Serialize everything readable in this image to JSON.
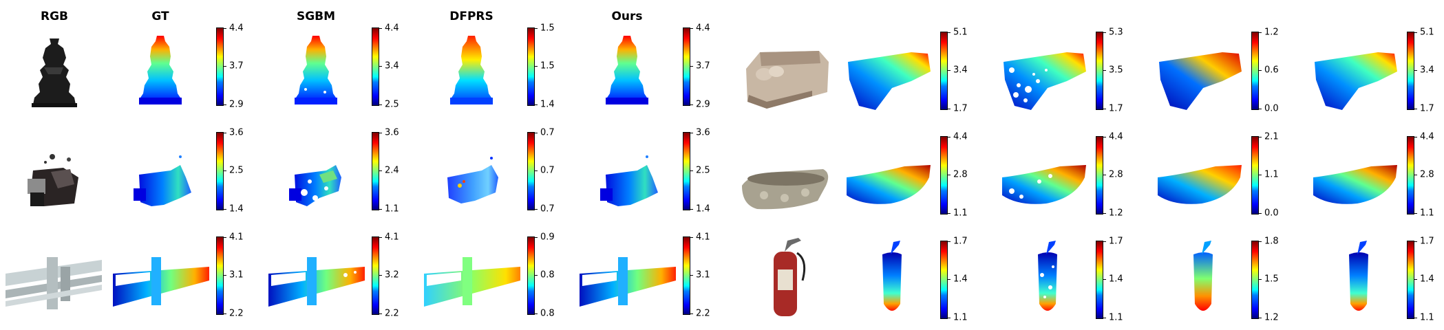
{
  "columns": [
    "RGB",
    "GT",
    "SGBM",
    "DFPRS",
    "Ours"
  ],
  "rows": [
    {
      "scene": "chess-piece",
      "colorbars": [
        [
          "4.4",
          "3.7",
          "2.9"
        ],
        [
          "4.4",
          "3.4",
          "2.5"
        ],
        [
          "1.5",
          "1.5",
          "1.4"
        ],
        [
          "4.4",
          "3.7",
          "2.9"
        ]
      ]
    },
    {
      "scene": "sofa",
      "colorbars": [
        [
          "5.1",
          "3.4",
          "1.7"
        ],
        [
          "5.3",
          "3.5",
          "1.7"
        ],
        [
          "1.2",
          "0.6",
          "0.0"
        ],
        [
          "5.1",
          "3.4",
          "1.7"
        ]
      ]
    },
    {
      "scene": "cluttered-objects",
      "colorbars": [
        [
          "3.6",
          "2.5",
          "1.4"
        ],
        [
          "3.6",
          "2.4",
          "1.1"
        ],
        [
          "0.7",
          "0.7",
          "0.7"
        ],
        [
          "3.6",
          "2.5",
          "1.4"
        ]
      ]
    },
    {
      "scene": "bathtub",
      "colorbars": [
        [
          "4.4",
          "2.8",
          "1.1"
        ],
        [
          "4.4",
          "2.8",
          "1.2"
        ],
        [
          "2.1",
          "1.1",
          "0.0"
        ],
        [
          "4.4",
          "2.8",
          "1.1"
        ]
      ]
    },
    {
      "scene": "railing",
      "colorbars": [
        [
          "4.1",
          "3.1",
          "2.2"
        ],
        [
          "4.1",
          "3.2",
          "2.2"
        ],
        [
          "0.9",
          "0.8",
          "0.8"
        ],
        [
          "4.1",
          "3.1",
          "2.2"
        ]
      ]
    },
    {
      "scene": "fire-extinguisher",
      "colorbars": [
        [
          "1.7",
          "1.4",
          "1.1"
        ],
        [
          "1.7",
          "1.4",
          "1.1"
        ],
        [
          "1.8",
          "1.5",
          "1.2"
        ],
        [
          "1.7",
          "1.4",
          "1.1"
        ]
      ]
    }
  ]
}
